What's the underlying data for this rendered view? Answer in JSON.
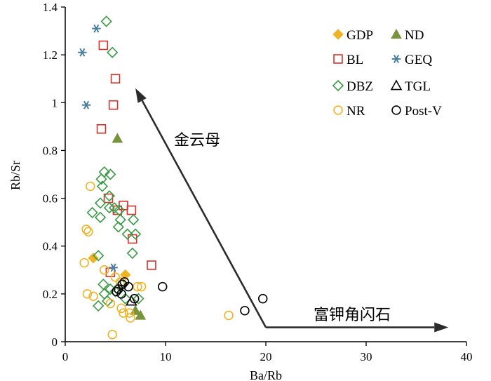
{
  "chart_data": {
    "type": "scatter",
    "xlabel": "Ba/Rb",
    "ylabel": "Rb/Sr",
    "xlim": [
      0,
      40
    ],
    "ylim": [
      0,
      1.4
    ],
    "xticks": [
      "0",
      "10",
      "20",
      "30",
      "40"
    ],
    "yticks": [
      "0",
      "0.2",
      "0.4",
      "0.6",
      "0.8",
      "1",
      "1.2",
      "1.4"
    ],
    "grid": false,
    "legend_position": "top-right",
    "series": [
      {
        "name": "GDP",
        "marker": "diamond-filled",
        "color": "#f0b323",
        "points": [
          [
            2.8,
            0.35
          ],
          [
            6.0,
            0.28
          ]
        ]
      },
      {
        "name": "ND",
        "marker": "triangle-filled",
        "color": "#77933c",
        "points": [
          [
            5.2,
            0.85
          ],
          [
            7.0,
            0.13
          ],
          [
            7.5,
            0.11
          ]
        ]
      },
      {
        "name": "BL",
        "marker": "square-open",
        "color": "#d9302a",
        "points": [
          [
            3.8,
            1.24
          ],
          [
            5.0,
            1.1
          ],
          [
            4.8,
            0.99
          ],
          [
            3.6,
            0.89
          ],
          [
            4.3,
            0.6
          ],
          [
            5.8,
            0.57
          ],
          [
            5.2,
            0.55
          ],
          [
            6.6,
            0.55
          ],
          [
            6.7,
            0.43
          ],
          [
            8.6,
            0.32
          ],
          [
            4.5,
            0.29
          ]
        ]
      },
      {
        "name": "GEQ",
        "marker": "star",
        "color": "#4a7fa0",
        "points": [
          [
            3.1,
            1.31
          ],
          [
            1.7,
            1.21
          ],
          [
            2.1,
            0.99
          ],
          [
            4.8,
            0.31
          ]
        ]
      },
      {
        "name": "DBZ",
        "marker": "diamond-open",
        "color": "#3a9a46",
        "points": [
          [
            4.1,
            1.34
          ],
          [
            4.7,
            1.21
          ],
          [
            3.9,
            0.71
          ],
          [
            4.5,
            0.7
          ],
          [
            3.6,
            0.68
          ],
          [
            3.7,
            0.65
          ],
          [
            4.4,
            0.61
          ],
          [
            3.5,
            0.58
          ],
          [
            2.7,
            0.54
          ],
          [
            3.5,
            0.52
          ],
          [
            4.4,
            0.56
          ],
          [
            5.4,
            0.55
          ],
          [
            4.9,
            0.56
          ],
          [
            5.5,
            0.51
          ],
          [
            6.8,
            0.51
          ],
          [
            5.3,
            0.48
          ],
          [
            6.2,
            0.45
          ],
          [
            7.0,
            0.45
          ],
          [
            6.7,
            0.37
          ],
          [
            3.3,
            0.36
          ],
          [
            3.8,
            0.24
          ],
          [
            4.5,
            0.22
          ],
          [
            5.0,
            0.21
          ],
          [
            3.9,
            0.2
          ],
          [
            4.2,
            0.17
          ],
          [
            3.3,
            0.15
          ],
          [
            6.0,
            0.18
          ],
          [
            7.3,
            0.18
          ],
          [
            5.6,
            0.24
          ]
        ]
      },
      {
        "name": "TGL",
        "marker": "triangle-open",
        "color": "#000000",
        "points": [
          [
            6.6,
            0.17
          ]
        ]
      },
      {
        "name": "NR",
        "marker": "circle-open",
        "color": "#f0b323",
        "points": [
          [
            2.5,
            0.65
          ],
          [
            2.1,
            0.47
          ],
          [
            2.3,
            0.46
          ],
          [
            1.9,
            0.33
          ],
          [
            2.2,
            0.2
          ],
          [
            2.8,
            0.19
          ],
          [
            3.9,
            0.3
          ],
          [
            5.0,
            0.27
          ],
          [
            5.5,
            0.25
          ],
          [
            4.5,
            0.16
          ],
          [
            5.6,
            0.14
          ],
          [
            5.8,
            0.12
          ],
          [
            6.4,
            0.12
          ],
          [
            6.5,
            0.1
          ],
          [
            4.7,
            0.03
          ],
          [
            7.2,
            0.23
          ],
          [
            7.6,
            0.23
          ],
          [
            16.3,
            0.11
          ]
        ]
      },
      {
        "name": "Post-V",
        "marker": "circle-open",
        "color": "#000000",
        "points": [
          [
            5.3,
            0.22
          ],
          [
            5.7,
            0.24
          ],
          [
            5.9,
            0.25
          ],
          [
            6.3,
            0.23
          ],
          [
            5.1,
            0.21
          ],
          [
            5.6,
            0.2
          ],
          [
            6.9,
            0.18
          ],
          [
            9.7,
            0.23
          ],
          [
            17.9,
            0.13
          ],
          [
            19.7,
            0.18
          ]
        ]
      }
    ],
    "legend": [
      {
        "label": "GDP",
        "marker": "diamond-filled",
        "color": "#f0b323"
      },
      {
        "label": "ND",
        "marker": "triangle-filled",
        "color": "#77933c"
      },
      {
        "label": "BL",
        "marker": "square-open",
        "color": "#d9302a"
      },
      {
        "label": "GEQ",
        "marker": "star",
        "color": "#4a7fa0"
      },
      {
        "label": "DBZ",
        "marker": "diamond-open",
        "color": "#3a9a46"
      },
      {
        "label": "TGL",
        "marker": "triangle-open",
        "color": "#000000"
      },
      {
        "label": "NR",
        "marker": "circle-open",
        "color": "#f0b323"
      },
      {
        "label": "Post-V",
        "marker": "circle-open",
        "color": "#000000"
      }
    ],
    "annotations": [
      {
        "text": "金云母",
        "arrow_from": [
          20,
          0.06
        ],
        "arrow_to": [
          7.0,
          1.06
        ]
      },
      {
        "text": "富钾角闪石",
        "arrow_from": [
          20,
          0.06
        ],
        "arrow_to": [
          38.2,
          0.06
        ]
      }
    ]
  }
}
